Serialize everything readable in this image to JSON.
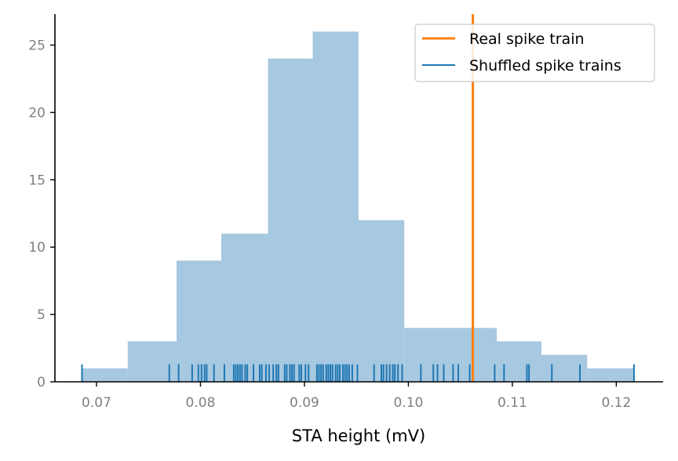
{
  "chart_data": {
    "type": "histogram",
    "xlabel": "STA height (mV)",
    "ylabel": "",
    "xlim": [
      0.066,
      0.1245
    ],
    "ylim": [
      0,
      27.3
    ],
    "x_ticks": [
      0.07,
      0.08,
      0.09,
      0.1,
      0.11,
      0.12
    ],
    "x_tick_labels": [
      "0.07",
      "0.08",
      "0.09",
      "0.10",
      "0.11",
      "0.12"
    ],
    "y_ticks": [
      0,
      5,
      10,
      15,
      20,
      25
    ],
    "y_tick_labels": [
      "0",
      "5",
      "10",
      "15",
      "20",
      "25"
    ],
    "grid": false,
    "legend_position": "top-right",
    "histogram": {
      "color": "#a6c8e0",
      "bins": [
        {
          "start": 0.0686,
          "end": 0.073,
          "count": 1
        },
        {
          "start": 0.073,
          "end": 0.0777,
          "count": 3
        },
        {
          "start": 0.0777,
          "end": 0.082,
          "count": 9
        },
        {
          "start": 0.082,
          "end": 0.0865,
          "count": 11
        },
        {
          "start": 0.0865,
          "end": 0.0908,
          "count": 24
        },
        {
          "start": 0.0908,
          "end": 0.0952,
          "count": 26
        },
        {
          "start": 0.0952,
          "end": 0.0996,
          "count": 12
        },
        {
          "start": 0.0996,
          "end": 0.1085,
          "count": 4
        },
        {
          "start": 0.1085,
          "end": 0.1128,
          "count": 3
        },
        {
          "start": 0.1128,
          "end": 0.1172,
          "count": 2
        },
        {
          "start": 0.1172,
          "end": 0.1217,
          "count": 1
        }
      ]
    },
    "series": [
      {
        "name": "Real spike train",
        "type": "vline",
        "color": "#ff7f0e",
        "x": 0.1062
      },
      {
        "name": "Shuffled spike trains",
        "type": "rug",
        "color": "#1f77b4",
        "rug_height": 1.3,
        "values": [
          0.0686,
          0.077,
          0.0779,
          0.0792,
          0.0798,
          0.0801,
          0.0804,
          0.0806,
          0.0813,
          0.0823,
          0.0832,
          0.0834,
          0.0836,
          0.0838,
          0.084,
          0.0843,
          0.0845,
          0.0851,
          0.0857,
          0.0859,
          0.0863,
          0.0866,
          0.087,
          0.0873,
          0.0875,
          0.0881,
          0.0883,
          0.0886,
          0.0888,
          0.089,
          0.0895,
          0.0897,
          0.0901,
          0.0904,
          0.0912,
          0.0914,
          0.0916,
          0.0918,
          0.0921,
          0.0923,
          0.0925,
          0.0927,
          0.093,
          0.0932,
          0.0934,
          0.0937,
          0.0939,
          0.0941,
          0.0943,
          0.0946,
          0.0951,
          0.0967,
          0.0974,
          0.0976,
          0.0979,
          0.0982,
          0.0985,
          0.0987,
          0.099,
          0.0994,
          0.1012,
          0.1024,
          0.1028,
          0.1034,
          0.1043,
          0.1048,
          0.1059,
          0.1083,
          0.1092,
          0.1114,
          0.1116,
          0.1138,
          0.1165,
          0.1217
        ]
      }
    ]
  }
}
